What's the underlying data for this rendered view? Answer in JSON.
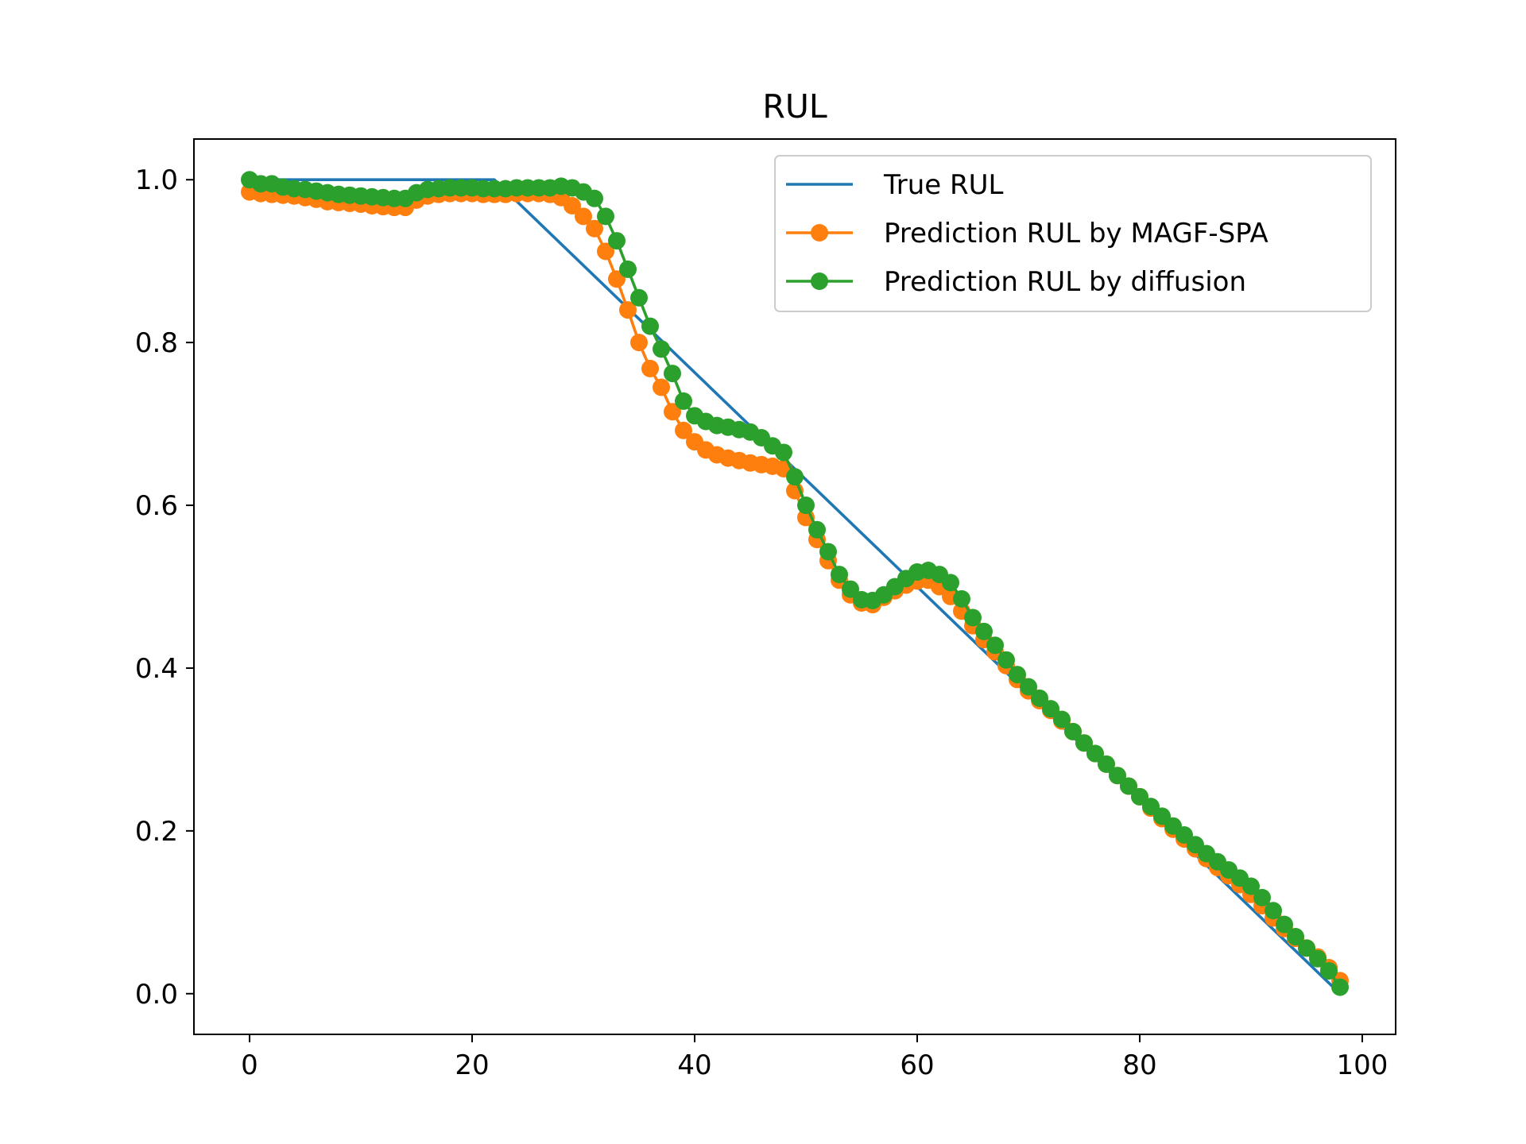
{
  "chart_data": {
    "type": "line",
    "title": "RUL",
    "xlabel": "",
    "ylabel": "",
    "xlim": [
      -5,
      103
    ],
    "ylim": [
      -0.05,
      1.05
    ],
    "xticks": [
      0,
      20,
      40,
      60,
      80,
      100
    ],
    "yticks": [
      0.0,
      0.2,
      0.4,
      0.6,
      0.8,
      1.0
    ],
    "xtick_labels": [
      "0",
      "20",
      "40",
      "60",
      "80",
      "100"
    ],
    "ytick_labels": [
      "0.0",
      "0.2",
      "0.4",
      "0.6",
      "0.8",
      "1.0"
    ],
    "grid": false,
    "legend_position": "top-right",
    "series": [
      {
        "name": "True RUL",
        "color": "#1f77b4",
        "marker": "none",
        "x": [
          0,
          22,
          98
        ],
        "y": [
          1.0,
          1.0,
          0.0
        ]
      },
      {
        "name": "Prediction RUL by MAGF-SPA",
        "color": "#ff7f0e",
        "marker": "circle",
        "x": [
          0,
          1,
          2,
          3,
          4,
          5,
          6,
          7,
          8,
          9,
          10,
          11,
          12,
          13,
          14,
          15,
          16,
          17,
          18,
          19,
          20,
          21,
          22,
          23,
          24,
          25,
          26,
          27,
          28,
          29,
          30,
          31,
          32,
          33,
          34,
          35,
          36,
          37,
          38,
          39,
          40,
          41,
          42,
          43,
          44,
          45,
          46,
          47,
          48,
          49,
          50,
          51,
          52,
          53,
          54,
          55,
          56,
          57,
          58,
          59,
          60,
          61,
          62,
          63,
          64,
          65,
          66,
          67,
          68,
          69,
          70,
          71,
          72,
          73,
          74,
          75,
          76,
          77,
          78,
          79,
          80,
          81,
          82,
          83,
          84,
          85,
          86,
          87,
          88,
          89,
          90,
          91,
          92,
          93,
          94,
          95,
          96,
          97,
          98
        ],
        "y": [
          0.985,
          0.983,
          0.982,
          0.981,
          0.98,
          0.978,
          0.976,
          0.973,
          0.972,
          0.971,
          0.97,
          0.968,
          0.967,
          0.966,
          0.966,
          0.975,
          0.98,
          0.982,
          0.983,
          0.983,
          0.983,
          0.982,
          0.982,
          0.982,
          0.983,
          0.983,
          0.983,
          0.982,
          0.978,
          0.968,
          0.955,
          0.94,
          0.912,
          0.878,
          0.84,
          0.8,
          0.768,
          0.745,
          0.715,
          0.692,
          0.678,
          0.668,
          0.662,
          0.658,
          0.655,
          0.652,
          0.65,
          0.648,
          0.645,
          0.618,
          0.585,
          0.558,
          0.532,
          0.508,
          0.49,
          0.48,
          0.478,
          0.487,
          0.495,
          0.502,
          0.507,
          0.508,
          0.5,
          0.488,
          0.47,
          0.452,
          0.435,
          0.42,
          0.403,
          0.386,
          0.372,
          0.36,
          0.348,
          0.335,
          0.322,
          0.308,
          0.295,
          0.282,
          0.268,
          0.255,
          0.242,
          0.228,
          0.215,
          0.202,
          0.19,
          0.178,
          0.166,
          0.155,
          0.145,
          0.134,
          0.122,
          0.108,
          0.093,
          0.08,
          0.068,
          0.056,
          0.045,
          0.032,
          0.016
        ]
      },
      {
        "name": "Prediction RUL by diffusion",
        "color": "#2ca02c",
        "marker": "circle",
        "x": [
          0,
          1,
          2,
          3,
          4,
          5,
          6,
          7,
          8,
          9,
          10,
          11,
          12,
          13,
          14,
          15,
          16,
          17,
          18,
          19,
          20,
          21,
          22,
          23,
          24,
          25,
          26,
          27,
          28,
          29,
          30,
          31,
          32,
          33,
          34,
          35,
          36,
          37,
          38,
          39,
          40,
          41,
          42,
          43,
          44,
          45,
          46,
          47,
          48,
          49,
          50,
          51,
          52,
          53,
          54,
          55,
          56,
          57,
          58,
          59,
          60,
          61,
          62,
          63,
          64,
          65,
          66,
          67,
          68,
          69,
          70,
          71,
          72,
          73,
          74,
          75,
          76,
          77,
          78,
          79,
          80,
          81,
          82,
          83,
          84,
          85,
          86,
          87,
          88,
          89,
          90,
          91,
          92,
          93,
          94,
          95,
          96,
          97,
          98
        ],
        "y": [
          1.0,
          0.995,
          0.995,
          0.991,
          0.989,
          0.988,
          0.986,
          0.984,
          0.982,
          0.981,
          0.98,
          0.979,
          0.978,
          0.977,
          0.977,
          0.984,
          0.988,
          0.989,
          0.99,
          0.99,
          0.99,
          0.989,
          0.989,
          0.989,
          0.99,
          0.99,
          0.99,
          0.99,
          0.992,
          0.99,
          0.985,
          0.977,
          0.955,
          0.925,
          0.89,
          0.855,
          0.82,
          0.792,
          0.762,
          0.728,
          0.71,
          0.703,
          0.698,
          0.696,
          0.693,
          0.69,
          0.683,
          0.673,
          0.665,
          0.635,
          0.6,
          0.57,
          0.543,
          0.515,
          0.497,
          0.484,
          0.483,
          0.49,
          0.5,
          0.51,
          0.518,
          0.52,
          0.515,
          0.505,
          0.485,
          0.462,
          0.445,
          0.428,
          0.41,
          0.392,
          0.377,
          0.363,
          0.35,
          0.337,
          0.322,
          0.308,
          0.295,
          0.282,
          0.268,
          0.255,
          0.242,
          0.23,
          0.218,
          0.206,
          0.195,
          0.183,
          0.172,
          0.162,
          0.152,
          0.142,
          0.132,
          0.118,
          0.102,
          0.085,
          0.07,
          0.056,
          0.043,
          0.028,
          0.008
        ]
      }
    ]
  }
}
